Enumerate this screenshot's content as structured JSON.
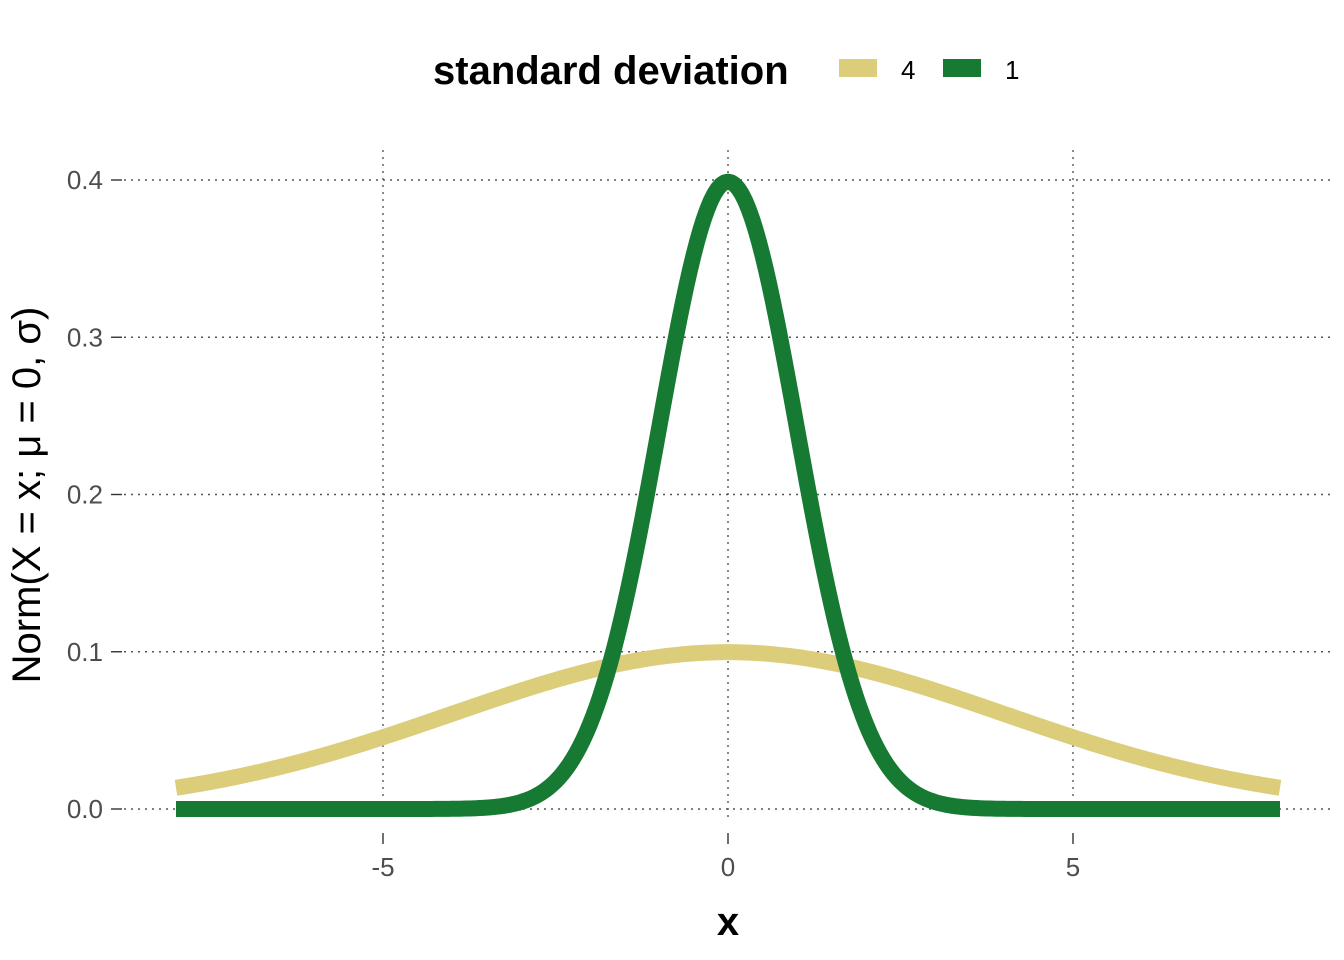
{
  "chart_data": {
    "type": "line",
    "xlabel": "x",
    "ylabel": "Norm(X = x; μ = 0, σ)",
    "xlim": [
      -8,
      8
    ],
    "ylim": [
      0,
      0.4
    ],
    "x_ticks": [
      -5,
      0,
      5
    ],
    "x_tick_labels": [
      "-5",
      "0",
      "5"
    ],
    "y_ticks": [
      0.0,
      0.1,
      0.2,
      0.3,
      0.4
    ],
    "y_tick_labels": [
      "0.0",
      "0.1",
      "0.2",
      "0.3",
      "0.4"
    ],
    "grid": true,
    "grid_style": "dotted",
    "legend": {
      "title": "standard deviation",
      "position": "top",
      "entries": [
        "4",
        "1"
      ]
    },
    "x": [
      -8,
      -7.5,
      -7,
      -6.5,
      -6,
      -5.5,
      -5,
      -4.5,
      -4,
      -3.5,
      -3,
      -2.5,
      -2,
      -1.5,
      -1,
      -0.5,
      0,
      0.5,
      1,
      1.5,
      2,
      2.5,
      3,
      3.5,
      4,
      4.5,
      5,
      5.5,
      6,
      6.5,
      7,
      7.5,
      8
    ],
    "series": [
      {
        "name": "4",
        "sd": 4,
        "color": "#dccd7a",
        "values": [
          0.0135,
          0.0173,
          0.0216,
          0.0267,
          0.0324,
          0.0388,
          0.0457,
          0.053,
          0.0605,
          0.068,
          0.0753,
          0.082,
          0.088,
          0.093,
          0.0967,
          0.099,
          0.0997,
          0.099,
          0.0967,
          0.093,
          0.088,
          0.082,
          0.0753,
          0.068,
          0.0605,
          0.053,
          0.0457,
          0.0388,
          0.0324,
          0.0267,
          0.0216,
          0.0173,
          0.0135
        ]
      },
      {
        "name": "1",
        "sd": 1,
        "color": "#167a32",
        "values": [
          0.0,
          0.0,
          0.0,
          0.0,
          0.0,
          0.0,
          0.0,
          0.0,
          0.0001,
          0.0009,
          0.0044,
          0.0175,
          0.054,
          0.1295,
          0.242,
          0.3521,
          0.3989,
          0.3521,
          0.242,
          0.1295,
          0.054,
          0.0175,
          0.0044,
          0.0009,
          0.0001,
          0.0,
          0.0,
          0.0,
          0.0,
          0.0,
          0.0,
          0.0,
          0.0
        ]
      }
    ]
  }
}
